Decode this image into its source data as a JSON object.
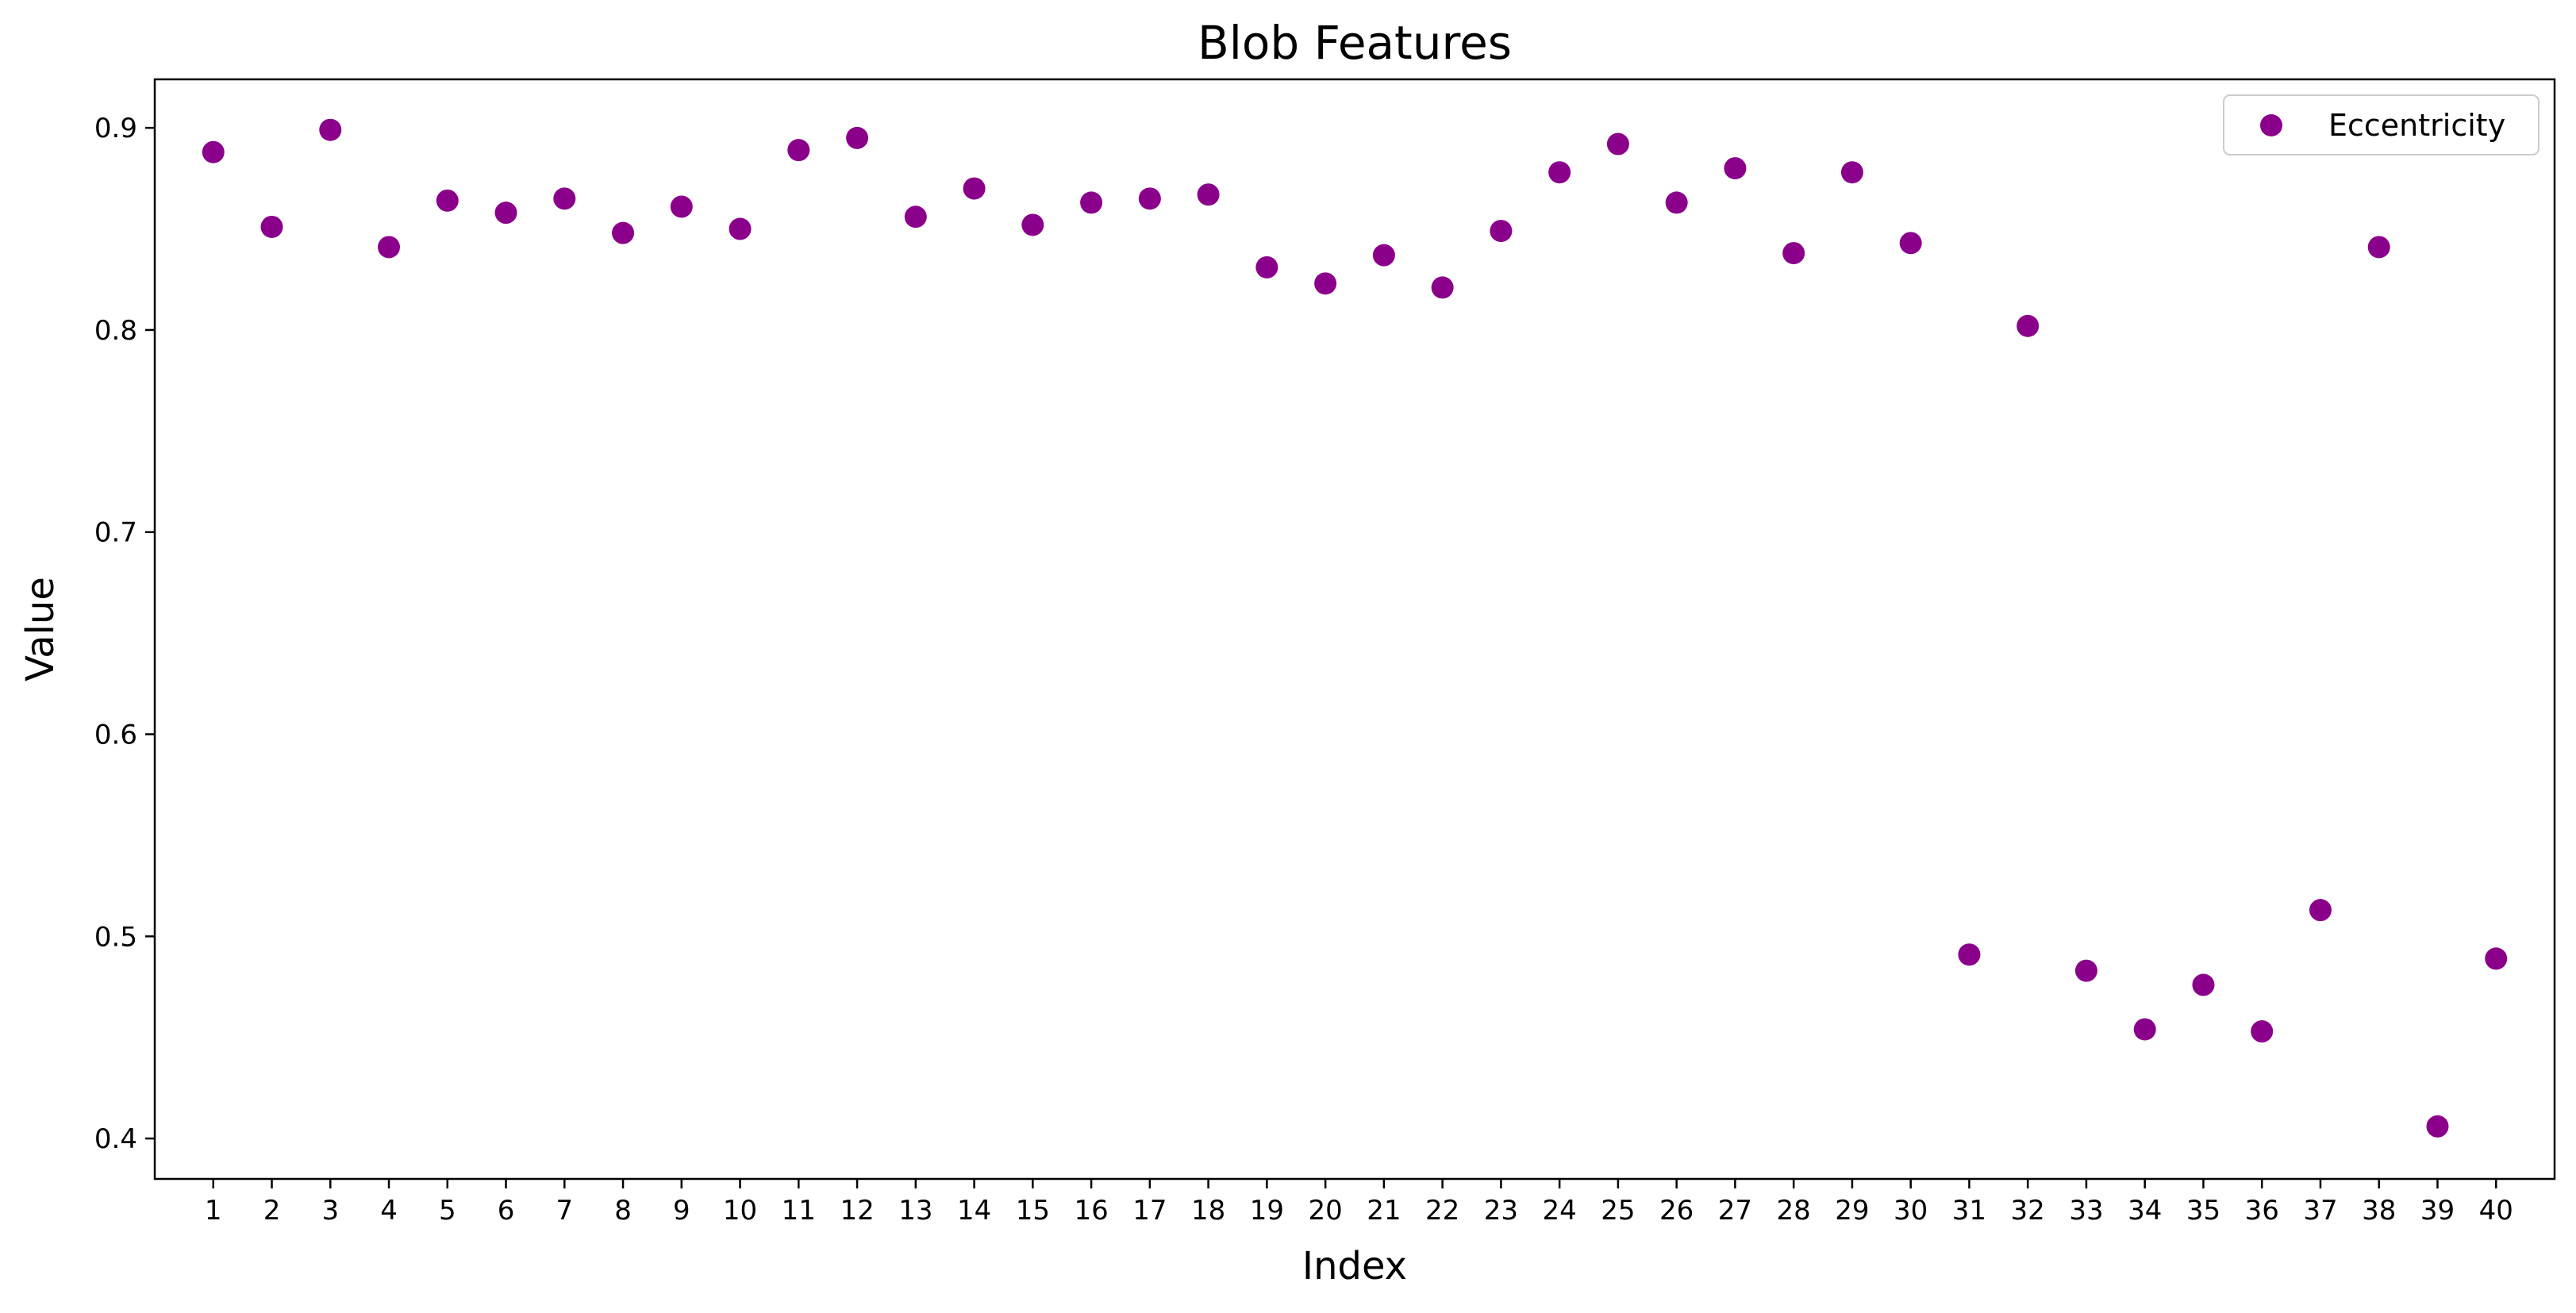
{
  "chart_data": {
    "type": "scatter",
    "title": "Blob Features",
    "xlabel": "Index",
    "ylabel": "Value",
    "xlim": [
      0,
      41
    ],
    "ylim": [
      0.38,
      0.924
    ],
    "yticks": [
      0.4,
      0.5,
      0.6,
      0.7,
      0.8,
      0.9
    ],
    "ytick_labels": [
      "0.4",
      "0.5",
      "0.6",
      "0.7",
      "0.8",
      "0.9"
    ],
    "xticks": [
      1,
      2,
      3,
      4,
      5,
      6,
      7,
      8,
      9,
      10,
      11,
      12,
      13,
      14,
      15,
      16,
      17,
      18,
      19,
      20,
      21,
      22,
      23,
      24,
      25,
      26,
      27,
      28,
      29,
      30,
      31,
      32,
      33,
      34,
      35,
      36,
      37,
      38,
      39,
      40
    ],
    "xtick_labels": [
      "1",
      "2",
      "3",
      "4",
      "5",
      "6",
      "7",
      "8",
      "9",
      "10",
      "11",
      "12",
      "13",
      "14",
      "15",
      "16",
      "17",
      "18",
      "19",
      "20",
      "21",
      "22",
      "23",
      "24",
      "25",
      "26",
      "27",
      "28",
      "29",
      "30",
      "31",
      "32",
      "33",
      "34",
      "35",
      "36",
      "37",
      "38",
      "39",
      "40"
    ],
    "grid": false,
    "legend_position": "top-right",
    "series": [
      {
        "name": "Eccentricity",
        "color": "#8b008b",
        "x": [
          1,
          2,
          3,
          4,
          5,
          6,
          7,
          8,
          9,
          10,
          11,
          12,
          13,
          14,
          15,
          16,
          17,
          18,
          19,
          20,
          21,
          22,
          23,
          24,
          25,
          26,
          27,
          28,
          29,
          30,
          31,
          32,
          33,
          34,
          35,
          36,
          37,
          38,
          39,
          40
        ],
        "y": [
          0.888,
          0.851,
          0.899,
          0.841,
          0.864,
          0.858,
          0.865,
          0.848,
          0.861,
          0.85,
          0.889,
          0.895,
          0.856,
          0.87,
          0.852,
          0.863,
          0.865,
          0.867,
          0.831,
          0.823,
          0.837,
          0.821,
          0.849,
          0.878,
          0.892,
          0.863,
          0.88,
          0.838,
          0.878,
          0.843,
          0.491,
          0.802,
          0.483,
          0.454,
          0.476,
          0.453,
          0.513,
          0.841,
          0.406,
          0.489
        ]
      }
    ]
  }
}
